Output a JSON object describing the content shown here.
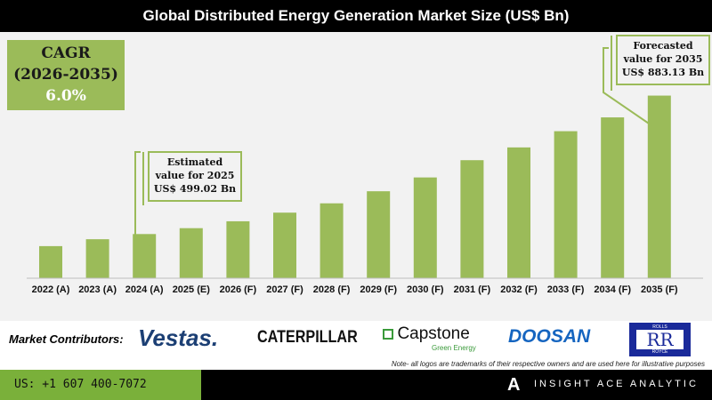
{
  "title": "Global Distributed Energy Generation Market Size (US$ Bn)",
  "cagr": {
    "label": "CAGR",
    "period": "(2026-2035)",
    "value": "6.0%"
  },
  "callouts": {
    "estimated": [
      "Estimated",
      "value for 2025",
      "US$ 499.02 Bn"
    ],
    "forecast": [
      "Forecasted",
      "value for 2035",
      "US$ 883.13 Bn"
    ]
  },
  "colors": {
    "bar": "#9bbb59",
    "accent": "#7ab03a",
    "header": "#000000"
  },
  "chart_data": {
    "type": "bar",
    "title": "Global Distributed Energy Generation Market Size (US$ Bn)",
    "categories": [
      "2022 (A)",
      "2023 (A)",
      "2024 (A)",
      "2025 (E)",
      "2026 (F)",
      "2027 (F)",
      "2028 (F)",
      "2029 (F)",
      "2030 (F)",
      "2031 (F)",
      "2032 (F)",
      "2033 (F)",
      "2034 (F)",
      "2035 (F)"
    ],
    "values": [
      447,
      467,
      482,
      499.02,
      519,
      544,
      571,
      606,
      646,
      696,
      733,
      780,
      820,
      883.13
    ],
    "ylim": [
      354,
      900
    ],
    "grid": false,
    "xlabel": "",
    "ylabel": ""
  },
  "contributors": {
    "label": "Market Contributors:",
    "logos": [
      "Vestas.",
      "CATERPILLAR",
      "Capstone",
      "Green Energy",
      "DOOSAN",
      "ROLLS",
      "RR",
      "ROYCE"
    ],
    "note": "Note- all logos are trademarks of their respective owners and are used here for illustrative purposes"
  },
  "footer": {
    "phone": "US: +1 607 400-7072",
    "brand": "INSIGHT ACE ANALYTIC"
  }
}
